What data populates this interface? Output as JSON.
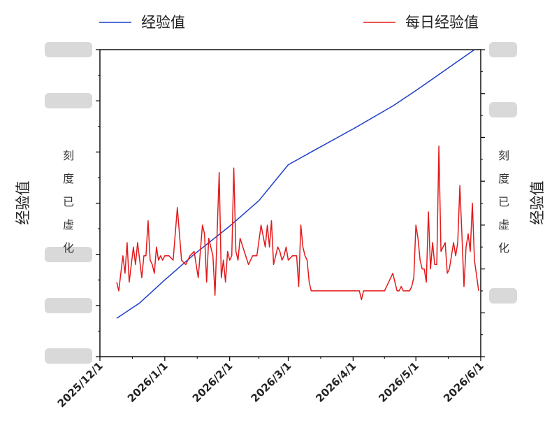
{
  "chart_data": {
    "type": "line",
    "ylabel_left": "经验值",
    "ylabel_right": "经验值",
    "blurred_tick_note_left": "刻度已虚化",
    "blurred_tick_note_right": "刻度已虚化",
    "x_ticks": [
      "2025/12/1",
      "2026/1/1",
      "2026/2/1",
      "2026/3/1",
      "2026/4/1",
      "2026/5/1",
      "2026/6/1"
    ],
    "xlim": [
      "2025/12/1",
      "2026/6/1"
    ],
    "left_ylim": [
      0,
      6
    ],
    "right_ylim": [
      0,
      7
    ],
    "legend_position": "top",
    "series": [
      {
        "name": "经验值",
        "color": "#1f3fc9",
        "axis": "left",
        "x": [
          "2025/12/9",
          "2025/12/20",
          "2026/1/1",
          "2026/1/15",
          "2026/2/1",
          "2026/2/15",
          "2026/3/1",
          "2026/3/12",
          "2026/4/1",
          "2026/4/20",
          "2026/5/1",
          "2026/5/15",
          "2026/5/29"
        ],
        "values": [
          0.75,
          1.05,
          1.5,
          2.0,
          2.55,
          3.05,
          3.75,
          4.0,
          4.45,
          4.9,
          5.2,
          5.6,
          6.0
        ]
      },
      {
        "name": "每日经验值",
        "color": "#e31a1c",
        "axis": "right",
        "x": [
          "2025/12/9",
          "2025/12/10",
          "2025/12/11",
          "2025/12/12",
          "2025/12/13",
          "2025/12/14",
          "2025/12/15",
          "2025/12/16",
          "2025/12/17",
          "2025/12/18",
          "2025/12/19",
          "2025/12/20",
          "2025/12/21",
          "2025/12/22",
          "2025/12/23",
          "2025/12/24",
          "2025/12/25",
          "2025/12/26",
          "2025/12/27",
          "2025/12/28",
          "2025/12/29",
          "2025/12/30",
          "2025/12/31",
          "2026/1/1",
          "2026/1/3",
          "2026/1/5",
          "2026/1/7",
          "2026/1/9",
          "2026/1/11",
          "2026/1/13",
          "2026/1/15",
          "2026/1/17",
          "2026/1/19",
          "2026/1/20",
          "2026/1/21",
          "2026/1/22",
          "2026/1/24",
          "2026/1/25",
          "2026/1/27",
          "2026/1/28",
          "2026/1/29",
          "2026/1/30",
          "2026/1/31",
          "2026/2/1",
          "2026/2/2",
          "2026/2/3",
          "2026/2/4",
          "2026/2/5",
          "2026/2/6",
          "2026/2/8",
          "2026/2/10",
          "2026/2/12",
          "2026/2/14",
          "2026/2/16",
          "2026/2/18",
          "2026/2/19",
          "2026/2/20",
          "2026/2/21",
          "2026/2/22",
          "2026/2/23",
          "2026/2/24",
          "2026/2/25",
          "2026/2/26",
          "2026/2/27",
          "2026/2/28",
          "2026/3/1",
          "2026/3/3",
          "2026/3/5",
          "2026/3/6",
          "2026/3/7",
          "2026/3/8",
          "2026/3/9",
          "2026/3/10",
          "2026/3/11",
          "2026/3/12",
          "2026/3/13",
          "2026/3/15",
          "2026/3/18",
          "2026/3/20",
          "2026/3/25",
          "2026/3/30",
          "2026/4/1",
          "2026/4/4",
          "2026/4/5",
          "2026/4/6",
          "2026/4/8",
          "2026/4/10",
          "2026/4/12",
          "2026/4/15",
          "2026/4/16",
          "2026/4/17",
          "2026/4/18",
          "2026/4/20",
          "2026/4/21",
          "2026/4/22",
          "2026/4/23",
          "2026/4/24",
          "2026/4/25",
          "2026/4/26",
          "2026/4/28",
          "2026/4/29",
          "2026/4/30",
          "2026/5/1",
          "2026/5/2",
          "2026/5/3",
          "2026/5/4",
          "2026/5/5",
          "2026/5/6",
          "2026/5/7",
          "2026/5/8",
          "2026/5/9",
          "2026/5/10",
          "2026/5/11",
          "2026/5/12",
          "2026/5/13",
          "2026/5/14",
          "2026/5/15",
          "2026/5/16",
          "2026/5/17",
          "2026/5/18",
          "2026/5/19",
          "2026/5/20",
          "2026/5/21",
          "2026/5/22",
          "2026/5/23",
          "2026/5/24",
          "2026/5/25",
          "2026/5/26",
          "2026/5/27",
          "2026/5/28",
          "2026/5/29",
          "2026/5/31"
        ],
        "values": [
          1.7,
          1.5,
          1.9,
          2.3,
          1.9,
          2.6,
          1.7,
          2.1,
          2.5,
          2.1,
          2.6,
          2.2,
          1.8,
          2.3,
          2.3,
          3.1,
          2.2,
          2.1,
          1.9,
          2.5,
          2.2,
          2.3,
          2.2,
          2.3,
          2.3,
          2.2,
          3.4,
          2.2,
          2.1,
          2.3,
          2.4,
          1.8,
          3.0,
          2.8,
          1.7,
          2.7,
          2.3,
          1.4,
          4.2,
          1.8,
          2.2,
          1.7,
          2.4,
          2.2,
          2.3,
          4.3,
          2.4,
          2.2,
          2.7,
          2.4,
          2.1,
          2.3,
          2.3,
          3.0,
          2.5,
          3.0,
          2.5,
          3.1,
          2.1,
          2.3,
          2.5,
          2.4,
          2.2,
          2.3,
          2.5,
          2.2,
          2.3,
          2.3,
          1.6,
          3.0,
          2.5,
          2.3,
          2.2,
          1.7,
          1.5,
          1.5,
          1.5,
          1.5,
          1.5,
          1.5,
          1.5,
          1.5,
          1.5,
          1.3,
          1.5,
          1.5,
          1.5,
          1.5,
          1.5,
          1.5,
          1.6,
          1.7,
          1.9,
          1.7,
          1.5,
          1.5,
          1.6,
          1.5,
          1.5,
          1.5,
          1.6,
          1.8,
          3.0,
          2.7,
          2.2,
          2.0,
          2.0,
          1.7,
          3.3,
          2.0,
          2.6,
          2.1,
          2.1,
          4.8,
          2.4,
          2.5,
          2.6,
          1.9,
          2.0,
          2.3,
          2.6,
          2.3,
          2.6,
          3.9,
          2.8,
          1.6,
          2.5,
          2.8,
          2.4,
          3.5,
          2.2,
          1.5
        ]
      }
    ]
  }
}
